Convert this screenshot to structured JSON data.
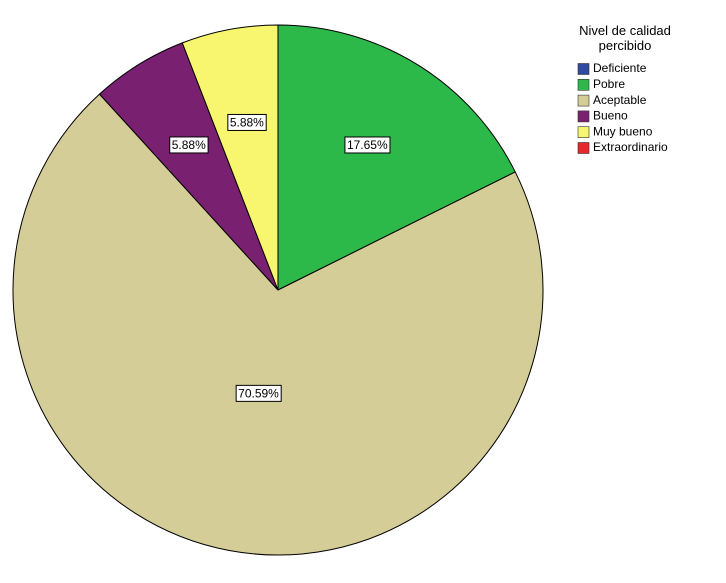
{
  "chart_data": {
    "type": "pie",
    "legend_title": "Nivel de calidad percibido",
    "categories": [
      "Deficiente",
      "Pobre",
      "Aceptable",
      "Bueno",
      "Muy bueno",
      "Extraordinario"
    ],
    "values": [
      0,
      17.65,
      70.59,
      5.88,
      5.88,
      0
    ],
    "value_labels": [
      null,
      "17.65%",
      "70.59%",
      "5.88%",
      "5.88%",
      null
    ],
    "colors": [
      "#2f4a9e",
      "#2db84a",
      "#d4cd98",
      "#7a2070",
      "#f8f56e",
      "#e8272c"
    ],
    "legend_position": "upper right"
  }
}
